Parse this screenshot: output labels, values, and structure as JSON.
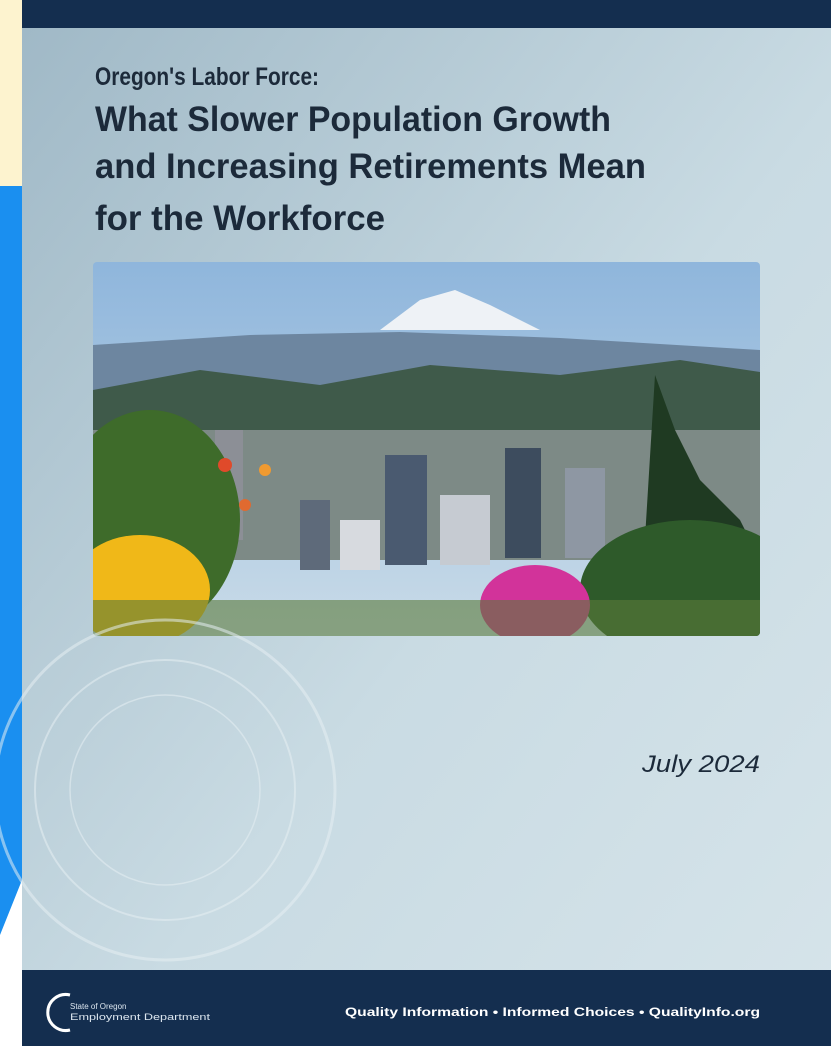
{
  "cover": {
    "subtitle": "Oregon's Labor Force:",
    "title_lines": [
      "What Slower Population Growth",
      "and Increasing Retirements Mean",
      "for the Workforce"
    ],
    "date": "July 2024",
    "footer": {
      "logo_lines": [
        "State of Oregon",
        "Employment Department"
      ],
      "tagline": "Quality Information • Informed Choices • QualityInfo.org"
    }
  }
}
